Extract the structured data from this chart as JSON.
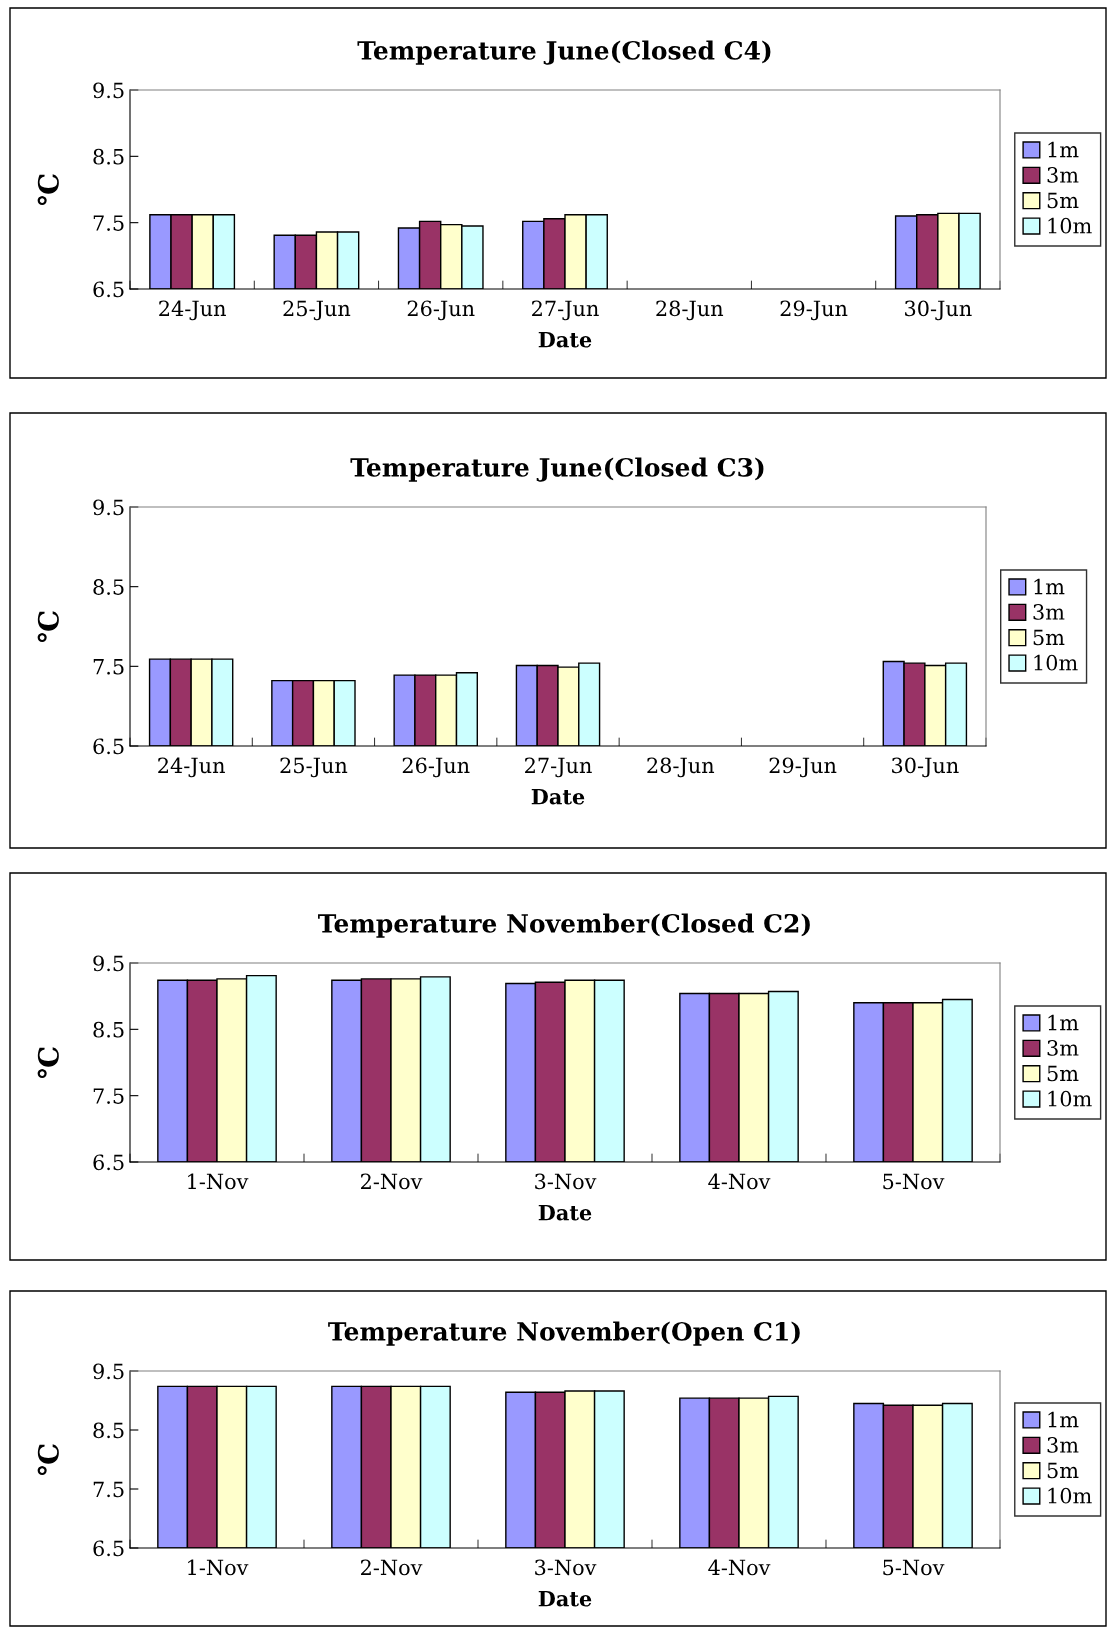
{
  "chart_data": [
    {
      "type": "bar",
      "title": "Temperature June(Closed C4)",
      "xlabel": "Date",
      "ylabel": "℃",
      "categories": [
        "24-Jun",
        "25-Jun",
        "26-Jun",
        "27-Jun",
        "28-Jun",
        "29-Jun",
        "30-Jun"
      ],
      "ylim": [
        6.5,
        9.5
      ],
      "yticks": [
        6.5,
        7.5,
        8.5,
        9.5
      ],
      "grid": false,
      "legend": "right",
      "series": [
        {
          "name": "1m",
          "color": "#9999ff",
          "values": [
            7.62,
            7.31,
            7.42,
            7.52,
            null,
            null,
            7.6
          ]
        },
        {
          "name": "3m",
          "color": "#993366",
          "values": [
            7.62,
            7.31,
            7.52,
            7.56,
            null,
            null,
            7.62
          ]
        },
        {
          "name": "5m",
          "color": "#ffffcc",
          "values": [
            7.62,
            7.36,
            7.47,
            7.62,
            null,
            null,
            7.64
          ]
        },
        {
          "name": "10m",
          "color": "#ccffff",
          "values": [
            7.62,
            7.36,
            7.45,
            7.62,
            null,
            null,
            7.64
          ]
        }
      ]
    },
    {
      "type": "bar",
      "title": "Temperature June(Closed C3)",
      "xlabel": "Date",
      "ylabel": "℃",
      "categories": [
        "24-Jun",
        "25-Jun",
        "26-Jun",
        "27-Jun",
        "28-Jun",
        "29-Jun",
        "30-Jun"
      ],
      "ylim": [
        6.5,
        9.5
      ],
      "yticks": [
        6.5,
        7.5,
        8.5,
        9.5
      ],
      "grid": false,
      "legend": "right",
      "series": [
        {
          "name": "1m",
          "color": "#9999ff",
          "values": [
            7.59,
            7.32,
            7.39,
            7.51,
            null,
            null,
            7.56
          ]
        },
        {
          "name": "3m",
          "color": "#993366",
          "values": [
            7.59,
            7.32,
            7.39,
            7.51,
            null,
            null,
            7.54
          ]
        },
        {
          "name": "5m",
          "color": "#ffffcc",
          "values": [
            7.59,
            7.32,
            7.39,
            7.49,
            null,
            null,
            7.51
          ]
        },
        {
          "name": "10m",
          "color": "#ccffff",
          "values": [
            7.59,
            7.32,
            7.42,
            7.54,
            null,
            null,
            7.54
          ]
        }
      ]
    },
    {
      "type": "bar",
      "title": "Temperature November(Closed C2)",
      "xlabel": "Date",
      "ylabel": "℃",
      "categories": [
        "1-Nov",
        "2-Nov",
        "3-Nov",
        "4-Nov",
        "5-Nov"
      ],
      "ylim": [
        6.5,
        9.5
      ],
      "yticks": [
        6.5,
        7.5,
        8.5,
        9.5
      ],
      "grid": false,
      "legend": "right",
      "series": [
        {
          "name": "1m",
          "color": "#9999ff",
          "values": [
            9.24,
            9.24,
            9.19,
            9.04,
            8.9
          ]
        },
        {
          "name": "3m",
          "color": "#993366",
          "values": [
            9.24,
            9.26,
            9.21,
            9.04,
            8.9
          ]
        },
        {
          "name": "5m",
          "color": "#ffffcc",
          "values": [
            9.26,
            9.26,
            9.24,
            9.04,
            8.9
          ]
        },
        {
          "name": "10m",
          "color": "#ccffff",
          "values": [
            9.31,
            9.29,
            9.24,
            9.07,
            8.95
          ]
        }
      ]
    },
    {
      "type": "bar",
      "title": "Temperature November(Open C1)",
      "xlabel": "Date",
      "ylabel": "℃",
      "categories": [
        "1-Nov",
        "2-Nov",
        "3-Nov",
        "4-Nov",
        "5-Nov"
      ],
      "ylim": [
        6.5,
        9.5
      ],
      "yticks": [
        6.5,
        7.5,
        8.5,
        9.5
      ],
      "grid": false,
      "legend": "right",
      "series": [
        {
          "name": "1m",
          "color": "#9999ff",
          "values": [
            9.24,
            9.24,
            9.14,
            9.04,
            8.95
          ]
        },
        {
          "name": "3m",
          "color": "#993366",
          "values": [
            9.24,
            9.24,
            9.14,
            9.04,
            8.92
          ]
        },
        {
          "name": "5m",
          "color": "#ffffcc",
          "values": [
            9.24,
            9.24,
            9.16,
            9.04,
            8.92
          ]
        },
        {
          "name": "10m",
          "color": "#ccffff",
          "values": [
            9.24,
            9.24,
            9.16,
            9.07,
            8.95
          ]
        }
      ]
    }
  ]
}
